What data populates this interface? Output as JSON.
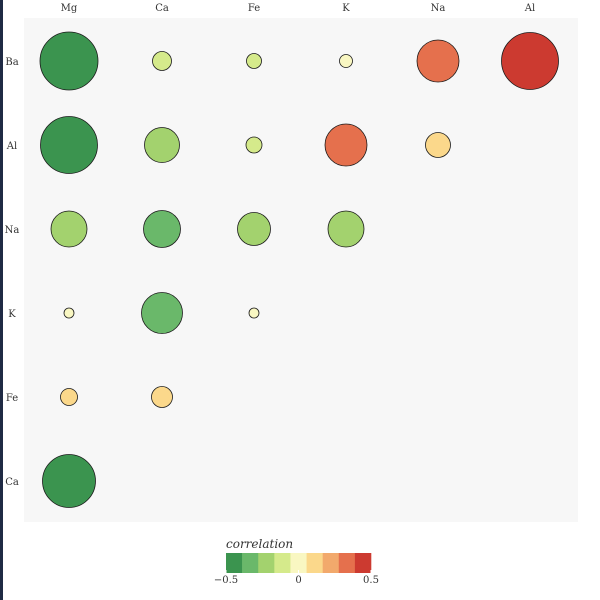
{
  "chart_data": {
    "type": "correlogram",
    "columns": [
      "Mg",
      "Ca",
      "Fe",
      "K",
      "Na",
      "Al"
    ],
    "rows": [
      "Ba",
      "Al",
      "Na",
      "K",
      "Fe",
      "Ca"
    ],
    "cells": [
      {
        "row": "Ba",
        "col": "Mg",
        "value": -0.49
      },
      {
        "row": "Ba",
        "col": "Ca",
        "value": -0.1
      },
      {
        "row": "Ba",
        "col": "Fe",
        "value": -0.06
      },
      {
        "row": "Ba",
        "col": "K",
        "value": -0.04
      },
      {
        "row": "Ba",
        "col": "Na",
        "value": 0.33
      },
      {
        "row": "Ba",
        "col": "Al",
        "value": 0.48
      },
      {
        "row": "Al",
        "col": "Mg",
        "value": -0.48
      },
      {
        "row": "Al",
        "col": "Ca",
        "value": -0.26
      },
      {
        "row": "Al",
        "col": "Fe",
        "value": -0.07
      },
      {
        "row": "Al",
        "col": "K",
        "value": 0.33
      },
      {
        "row": "Al",
        "col": "Na",
        "value": 0.16
      },
      {
        "row": "Na",
        "col": "Mg",
        "value": -0.27
      },
      {
        "row": "Na",
        "col": "Ca",
        "value": -0.28
      },
      {
        "row": "Na",
        "col": "Fe",
        "value": -0.24
      },
      {
        "row": "Na",
        "col": "K",
        "value": -0.27
      },
      {
        "row": "K",
        "col": "Mg",
        "value": -0.01
      },
      {
        "row": "K",
        "col": "Ca",
        "value": -0.32
      },
      {
        "row": "K",
        "col": "Fe",
        "value": -0.01
      },
      {
        "row": "Fe",
        "col": "Mg",
        "value": 0.08
      },
      {
        "row": "Fe",
        "col": "Ca",
        "value": 0.12
      },
      {
        "row": "Ca",
        "col": "Mg",
        "value": -0.44
      }
    ],
    "legend": {
      "title": "correlation",
      "min": -0.5,
      "max": 0.5,
      "ticks": [
        {
          "value": -0.5,
          "label": "−0.5"
        },
        {
          "value": 0,
          "label": "0"
        },
        {
          "value": 0.5,
          "label": "0.5"
        }
      ],
      "placement": "bottom",
      "bins": [
        "#3b944f",
        "#6ab86a",
        "#a3d26e",
        "#d5ea8b",
        "#f9f7c2",
        "#fbd88b",
        "#f2a96c",
        "#e5704d",
        "#cc3a30"
      ]
    }
  }
}
